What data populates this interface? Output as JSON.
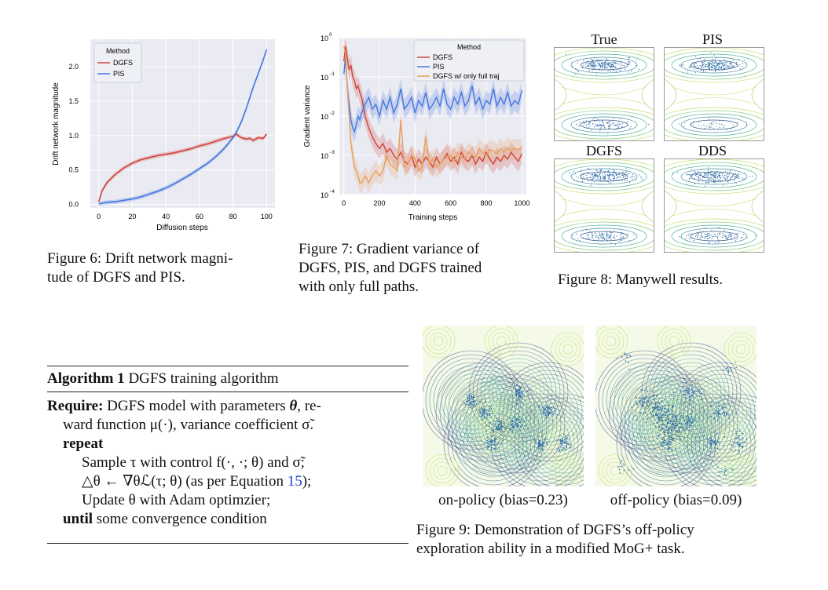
{
  "figure6": {
    "caption_line1": "Figure 6: Drift network magni-",
    "caption_line2": "tude of DGFS and PIS.",
    "chart_data": {
      "type": "line",
      "xlabel": "Diffusion steps",
      "ylabel": "Drift network magnitude",
      "xlim": [
        -5,
        105
      ],
      "ylim": [
        -0.05,
        2.4
      ],
      "xticks": [
        "0",
        "20",
        "40",
        "60",
        "80",
        "100"
      ],
      "yticks": [
        "0.0",
        "0.5",
        "1.0",
        "1.5",
        "2.0"
      ],
      "legend_title": "Method",
      "legend_position": "top-left",
      "grid": true,
      "x": [
        0,
        2,
        5,
        10,
        15,
        20,
        25,
        30,
        35,
        40,
        45,
        50,
        55,
        60,
        65,
        70,
        75,
        80,
        82,
        85,
        88,
        90,
        92,
        95,
        98,
        100
      ],
      "series": [
        {
          "name": "DGFS",
          "color": "#d0453a",
          "values": [
            0.04,
            0.2,
            0.32,
            0.44,
            0.53,
            0.6,
            0.65,
            0.68,
            0.71,
            0.73,
            0.75,
            0.78,
            0.81,
            0.85,
            0.88,
            0.92,
            0.96,
            0.99,
            1.02,
            0.97,
            0.95,
            0.96,
            0.93,
            0.97,
            0.96,
            1.02
          ]
        },
        {
          "name": "PIS",
          "color": "#4576de",
          "values": [
            0.01,
            0.02,
            0.03,
            0.04,
            0.06,
            0.08,
            0.11,
            0.15,
            0.19,
            0.24,
            0.3,
            0.37,
            0.44,
            0.52,
            0.6,
            0.7,
            0.82,
            0.97,
            1.05,
            1.2,
            1.4,
            1.55,
            1.7,
            1.9,
            2.1,
            2.25
          ]
        }
      ]
    }
  },
  "figure7": {
    "caption_line1": "Figure 7: Gradient variance of",
    "caption_line2": "DGFS, PIS, and DGFS trained",
    "caption_line3": "with only full paths.",
    "chart_data": {
      "type": "line",
      "xlabel": "Training steps",
      "ylabel": "Gradient variance",
      "y_scale": "log",
      "ylim": [
        0.0001,
        1
      ],
      "xlim": [
        -25,
        1025
      ],
      "xticks": [
        "0",
        "200",
        "400",
        "600",
        "800",
        "1000"
      ],
      "ytick_bases": [
        "10",
        "10",
        "10",
        "10",
        "10"
      ],
      "ytick_exponents": [
        "0",
        "−1",
        "−2",
        "−3",
        "−4"
      ],
      "legend_title": "Method",
      "legend_position": "top-right",
      "grid": true,
      "x": [
        0,
        10,
        20,
        30,
        40,
        50,
        60,
        70,
        80,
        90,
        100,
        120,
        140,
        160,
        180,
        200,
        220,
        240,
        260,
        280,
        300,
        320,
        340,
        360,
        380,
        400,
        420,
        440,
        460,
        480,
        500,
        520,
        540,
        560,
        580,
        600,
        620,
        640,
        660,
        680,
        700,
        720,
        740,
        760,
        780,
        800,
        820,
        840,
        860,
        880,
        900,
        920,
        940,
        960,
        980,
        1000
      ],
      "series": [
        {
          "name": "DGFS",
          "color": "#d0453a",
          "values": [
            0.25,
            0.6,
            0.3,
            0.15,
            0.2,
            0.1,
            0.08,
            0.05,
            0.06,
            0.04,
            0.03,
            0.01,
            0.005,
            0.003,
            0.002,
            0.0015,
            0.002,
            0.0012,
            0.0015,
            0.001,
            0.0008,
            0.0012,
            0.0007,
            0.0006,
            0.001,
            0.0005,
            0.0008,
            0.0006,
            0.0009,
            0.0007,
            0.0005,
            0.0009,
            0.0006,
            0.0008,
            0.0011,
            0.0007,
            0.0009,
            0.0006,
            0.0012,
            0.0008,
            0.0007,
            0.001,
            0.0006,
            0.0009,
            0.0007,
            0.0012,
            0.0008,
            0.0006,
            0.0009,
            0.0007,
            0.001,
            0.0008,
            0.0012,
            0.0009,
            0.0007,
            0.0011
          ]
        },
        {
          "name": "PIS",
          "color": "#4576de",
          "values": [
            0.12,
            0.3,
            0.05,
            0.02,
            0.008,
            0.005,
            0.004,
            0.006,
            0.01,
            0.008,
            0.012,
            0.02,
            0.03,
            0.015,
            0.02,
            0.01,
            0.025,
            0.015,
            0.03,
            0.012,
            0.02,
            0.05,
            0.015,
            0.02,
            0.03,
            0.012,
            0.025,
            0.018,
            0.04,
            0.015,
            0.02,
            0.03,
            0.018,
            0.05,
            0.02,
            0.015,
            0.03,
            0.02,
            0.04,
            0.018,
            0.025,
            0.06,
            0.02,
            0.03,
            0.015,
            0.025,
            0.02,
            0.05,
            0.018,
            0.03,
            0.02,
            0.04,
            0.018,
            0.025,
            0.02,
            0.045
          ]
        },
        {
          "name": "DGFS w/ only full traj",
          "color": "#e8a05a",
          "values": [
            0.6,
            0.4,
            0.05,
            0.01,
            0.002,
            0.001,
            0.0005,
            0.0004,
            0.0003,
            0.0002,
            0.0002,
            0.0003,
            0.0002,
            0.0003,
            0.0004,
            0.0003,
            0.0004,
            0.001,
            0.0006,
            0.0005,
            0.0004,
            0.008,
            0.0005,
            0.0006,
            0.001,
            0.0008,
            0.0004,
            0.0005,
            0.003,
            0.0006,
            0.0008,
            0.0005,
            0.0006,
            0.0008,
            0.0009,
            0.001,
            0.0007,
            0.0012,
            0.0009,
            0.0008,
            0.0012,
            0.001,
            0.0009,
            0.0015,
            0.0012,
            0.001,
            0.0014,
            0.0013,
            0.0011,
            0.0015,
            0.0012,
            0.0016,
            0.0013,
            0.0015,
            0.0014,
            0.0016
          ]
        }
      ]
    }
  },
  "figure8": {
    "caption": "Figure 8: Manywell results.",
    "panels": [
      {
        "title": "True"
      },
      {
        "title": "PIS"
      },
      {
        "title": "DGFS"
      },
      {
        "title": "DDS"
      }
    ]
  },
  "algorithm": {
    "header_bold": "Algorithm 1",
    "header_rest": " DGFS training algorithm",
    "require_bold": "Require:",
    "require_text": " DGFS model with parameters ",
    "theta": "θ",
    "require_tail": ", re-",
    "line2": "ward function μ(·), variance coefficient σ̃.",
    "repeat": "repeat",
    "line_sample": "Sample τ with control f(·, ·; θ) and σ̃;",
    "line_grad_pre": "△θ ← ∇θℒ(τ; θ) (as per Equation ",
    "eq_ref": "15",
    "line_grad_post": ");",
    "line_update": "Update θ with Adam optimzier;",
    "until": "until",
    "until_text": " some convergence condition"
  },
  "figure9": {
    "label_left": "on-policy (bias=0.23)",
    "label_right": "off-policy (bias=0.09)",
    "caption_line1": "Figure 9: Demonstration of DGFS’s off-policy",
    "caption_line2": "exploration ability in a modified MoG+ task."
  },
  "colors": {
    "dgfs": "#d0453a",
    "pis": "#4576de",
    "full_traj": "#e8a05a",
    "axes_bg": "#eaeaf2",
    "contour_a": "#4a7fa6",
    "contour_b": "#9fd27a",
    "sample": "#2f6ea5"
  }
}
